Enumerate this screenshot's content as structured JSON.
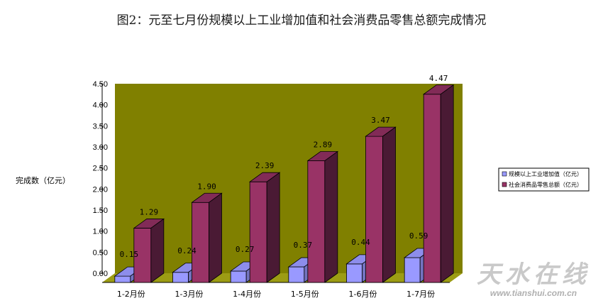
{
  "chart_data": {
    "type": "bar",
    "title": "图2：元至七月份规模以上工业增加值和社会消费品零售总额完成情况",
    "ylabel": "完成数（亿元）",
    "xlabel": "",
    "ylim": [
      0,
      4.5
    ],
    "yticks": [
      "0.00",
      "0.50",
      "1.00",
      "1.50",
      "2.00",
      "2.50",
      "3.00",
      "3.50",
      "4.00",
      "4.50"
    ],
    "categories": [
      "1-2月份",
      "1-3月份",
      "1-4月份",
      "1-5月份",
      "1-6月份",
      "1-7月份"
    ],
    "series": [
      {
        "name": "规模以上工业增加值（亿元）",
        "values": [
          0.15,
          0.24,
          0.27,
          0.37,
          0.44,
          0.59
        ],
        "labels": [
          "0.15",
          "0.24",
          "0.27",
          "0.37",
          "0.44",
          "0.59"
        ],
        "color": "#9999ff"
      },
      {
        "name": "社会消费品零售总额（亿元）",
        "values": [
          1.29,
          1.9,
          2.39,
          2.89,
          3.47,
          4.47
        ],
        "labels": [
          "1.29",
          "1.90",
          "2.39",
          "2.89",
          "3.47",
          "4.47"
        ],
        "color": "#993366"
      }
    ],
    "plot_background": "#808000",
    "grid": false,
    "legend_position": "right",
    "style": "3d-bar"
  },
  "watermark": {
    "text": "天水在线",
    "url": "www.tianshui.com.cn"
  }
}
